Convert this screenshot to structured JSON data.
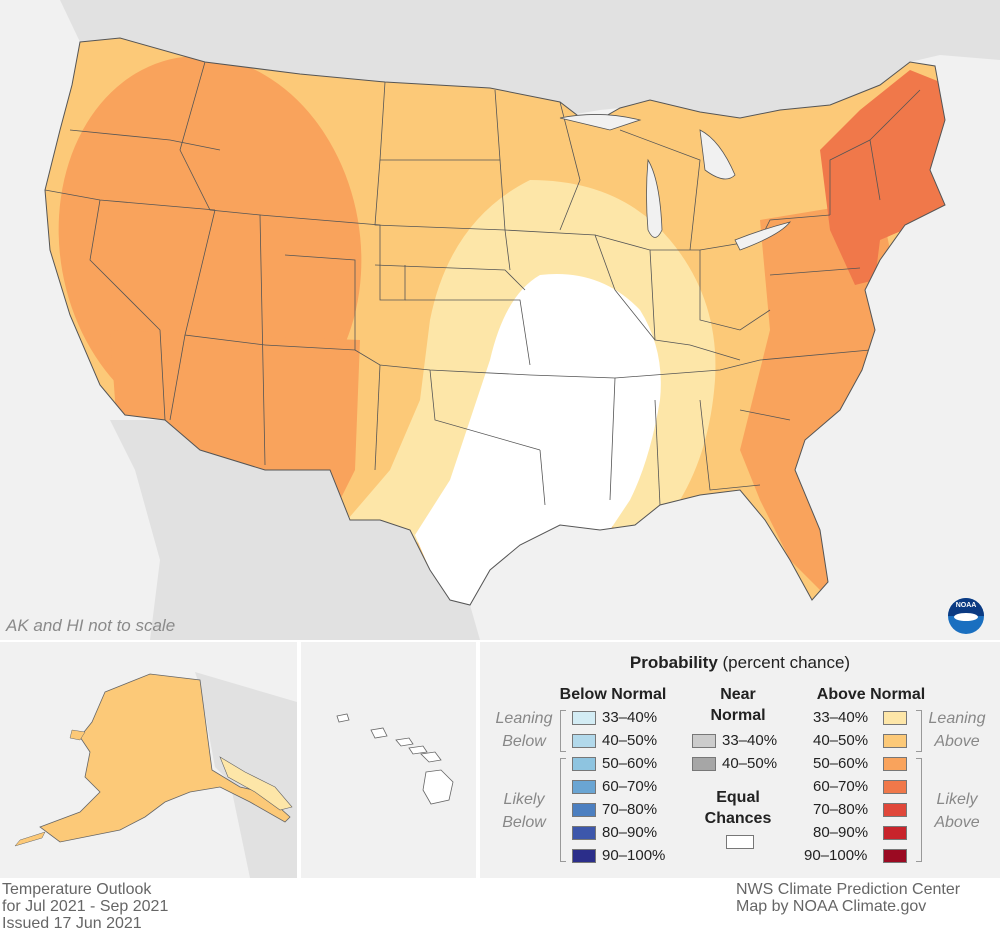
{
  "map": {
    "scale_note": "AK and HI not to scale"
  },
  "colors": {
    "background": "#f1f1f1",
    "state_line": "#555555",
    "equal_chances": "#ffffff",
    "above_33_40": "#fde6a8",
    "above_40_50": "#fcc978",
    "above_50_60": "#f9a35c",
    "above_60_70": "#f0784a",
    "above_70_80": "#e0473a",
    "above_80_90": "#c8242b",
    "above_90_100": "#9b0a22",
    "below_33_40": "#d3ecf4",
    "below_40_50": "#b2d9eb",
    "below_50_60": "#8ec4e0",
    "below_60_70": "#6aa5d3",
    "below_70_80": "#4c7fc0",
    "below_80_90": "#3d57ab",
    "below_90_100": "#2b2e8a",
    "near_33_40": "#cccccc",
    "near_40_50": "#a6a6a6"
  },
  "legend": {
    "title_bold": "Probability",
    "title_rest": " (percent chance)",
    "below_header": "Below Normal",
    "near_header_line1": "Near",
    "near_header_line2": "Normal",
    "above_header": "Above Normal",
    "below_labels": [
      "33–40%",
      "40–50%",
      "50–60%",
      "60–70%",
      "70–80%",
      "80–90%",
      "90–100%"
    ],
    "near_labels": [
      "33–40%",
      "40–50%"
    ],
    "above_labels": [
      "33–40%",
      "40–50%",
      "50–60%",
      "60–70%",
      "70–80%",
      "80–90%",
      "90–100%"
    ],
    "leaning_below_1": "Leaning",
    "leaning_below_2": "Below",
    "likely_below_1": "Likely",
    "likely_below_2": "Below",
    "leaning_above_1": "Leaning",
    "leaning_above_2": "Above",
    "likely_above_1": "Likely",
    "likely_above_2": "Above",
    "equal_1": "Equal",
    "equal_2": "Chances"
  },
  "footer": {
    "left_1": "Temperature Outlook",
    "left_2": "for Jul 2021 - Sep 2021",
    "left_3": "Issued 17 Jun 2021",
    "right_1": "NWS Climate Prediction Center",
    "right_2": "Map by NOAA Climate.gov"
  },
  "logo": {
    "text": "NOAA"
  }
}
